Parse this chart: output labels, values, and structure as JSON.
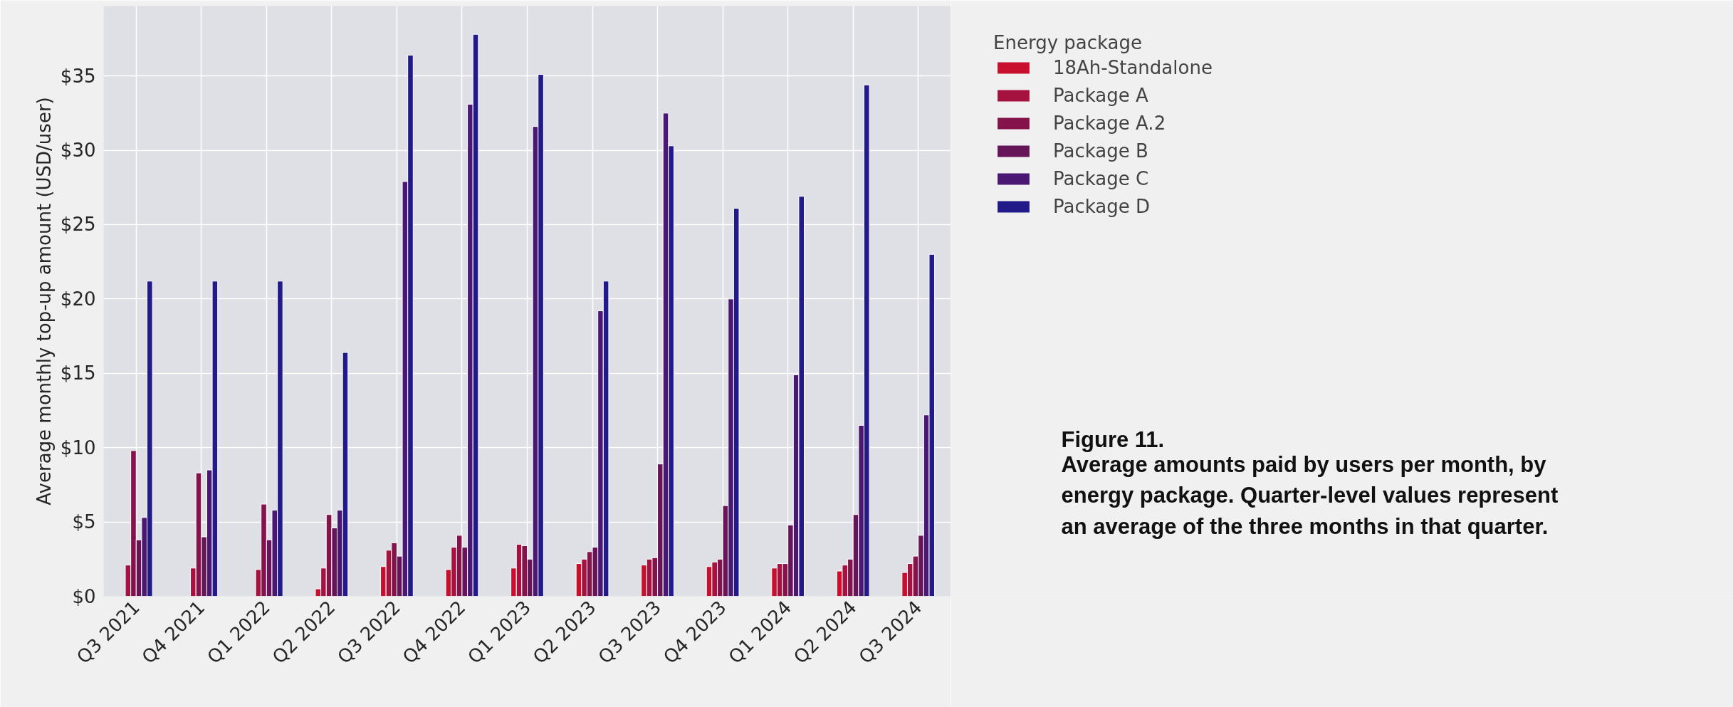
{
  "chart_data": {
    "type": "bar",
    "categories": [
      "Q3 2021",
      "Q4 2021",
      "Q1 2022",
      "Q2 2022",
      "Q3 2022",
      "Q4 2022",
      "Q1 2023",
      "Q2 2023",
      "Q3 2023",
      "Q4 2023",
      "Q1 2024",
      "Q2 2024",
      "Q3 2024"
    ],
    "series": [
      {
        "name": "18Ah-Standalone",
        "color": "#c8102e",
        "values": [
          null,
          null,
          null,
          0.5,
          2.0,
          1.8,
          1.9,
          2.2,
          2.1,
          2.0,
          1.9,
          1.7,
          1.6
        ]
      },
      {
        "name": "Package A",
        "color": "#a6123f",
        "values": [
          2.1,
          1.9,
          1.8,
          1.9,
          3.1,
          3.3,
          3.5,
          2.5,
          2.5,
          2.3,
          2.2,
          2.1,
          2.2
        ]
      },
      {
        "name": "Package A.2",
        "color": "#84134b",
        "values": [
          9.8,
          8.3,
          6.2,
          5.5,
          3.6,
          4.1,
          3.4,
          3.0,
          2.6,
          2.5,
          2.2,
          2.5,
          2.7
        ]
      },
      {
        "name": "Package B",
        "color": "#661558",
        "values": [
          3.8,
          4.0,
          3.8,
          4.6,
          2.7,
          3.3,
          2.5,
          3.3,
          8.9,
          6.1,
          4.8,
          5.5,
          4.1
        ]
      },
      {
        "name": "Package C",
        "color": "#4a1872",
        "values": [
          5.3,
          8.5,
          5.8,
          5.8,
          27.9,
          33.1,
          31.6,
          19.2,
          32.5,
          20.0,
          14.9,
          11.5,
          12.2
        ]
      },
      {
        "name": "Package D",
        "color": "#231a8a",
        "values": [
          21.2,
          21.2,
          21.2,
          16.4,
          36.4,
          37.8,
          35.1,
          21.2,
          30.3,
          26.1,
          26.9,
          34.4,
          23.0
        ]
      }
    ],
    "ylabel": "Average monthly top-up amount (USD/user)",
    "ylim": [
      0,
      39.7
    ],
    "yticks": [
      {
        "value": 0,
        "label": "$0"
      },
      {
        "value": 5,
        "label": "$5"
      },
      {
        "value": 10,
        "label": "$10"
      },
      {
        "value": 15,
        "label": "$15"
      },
      {
        "value": 20,
        "label": "$20"
      },
      {
        "value": 25,
        "label": "$25"
      },
      {
        "value": 30,
        "label": "$30"
      },
      {
        "value": 35,
        "label": "$35"
      }
    ],
    "legend_title": "Energy package",
    "legend": "top right",
    "grid": true,
    "annotations": [
      "Figure 11.",
      "Average amounts paid by users per month, by\nenergy package. Quarter-level values represent\nan average of the three months in that quarter."
    ]
  }
}
